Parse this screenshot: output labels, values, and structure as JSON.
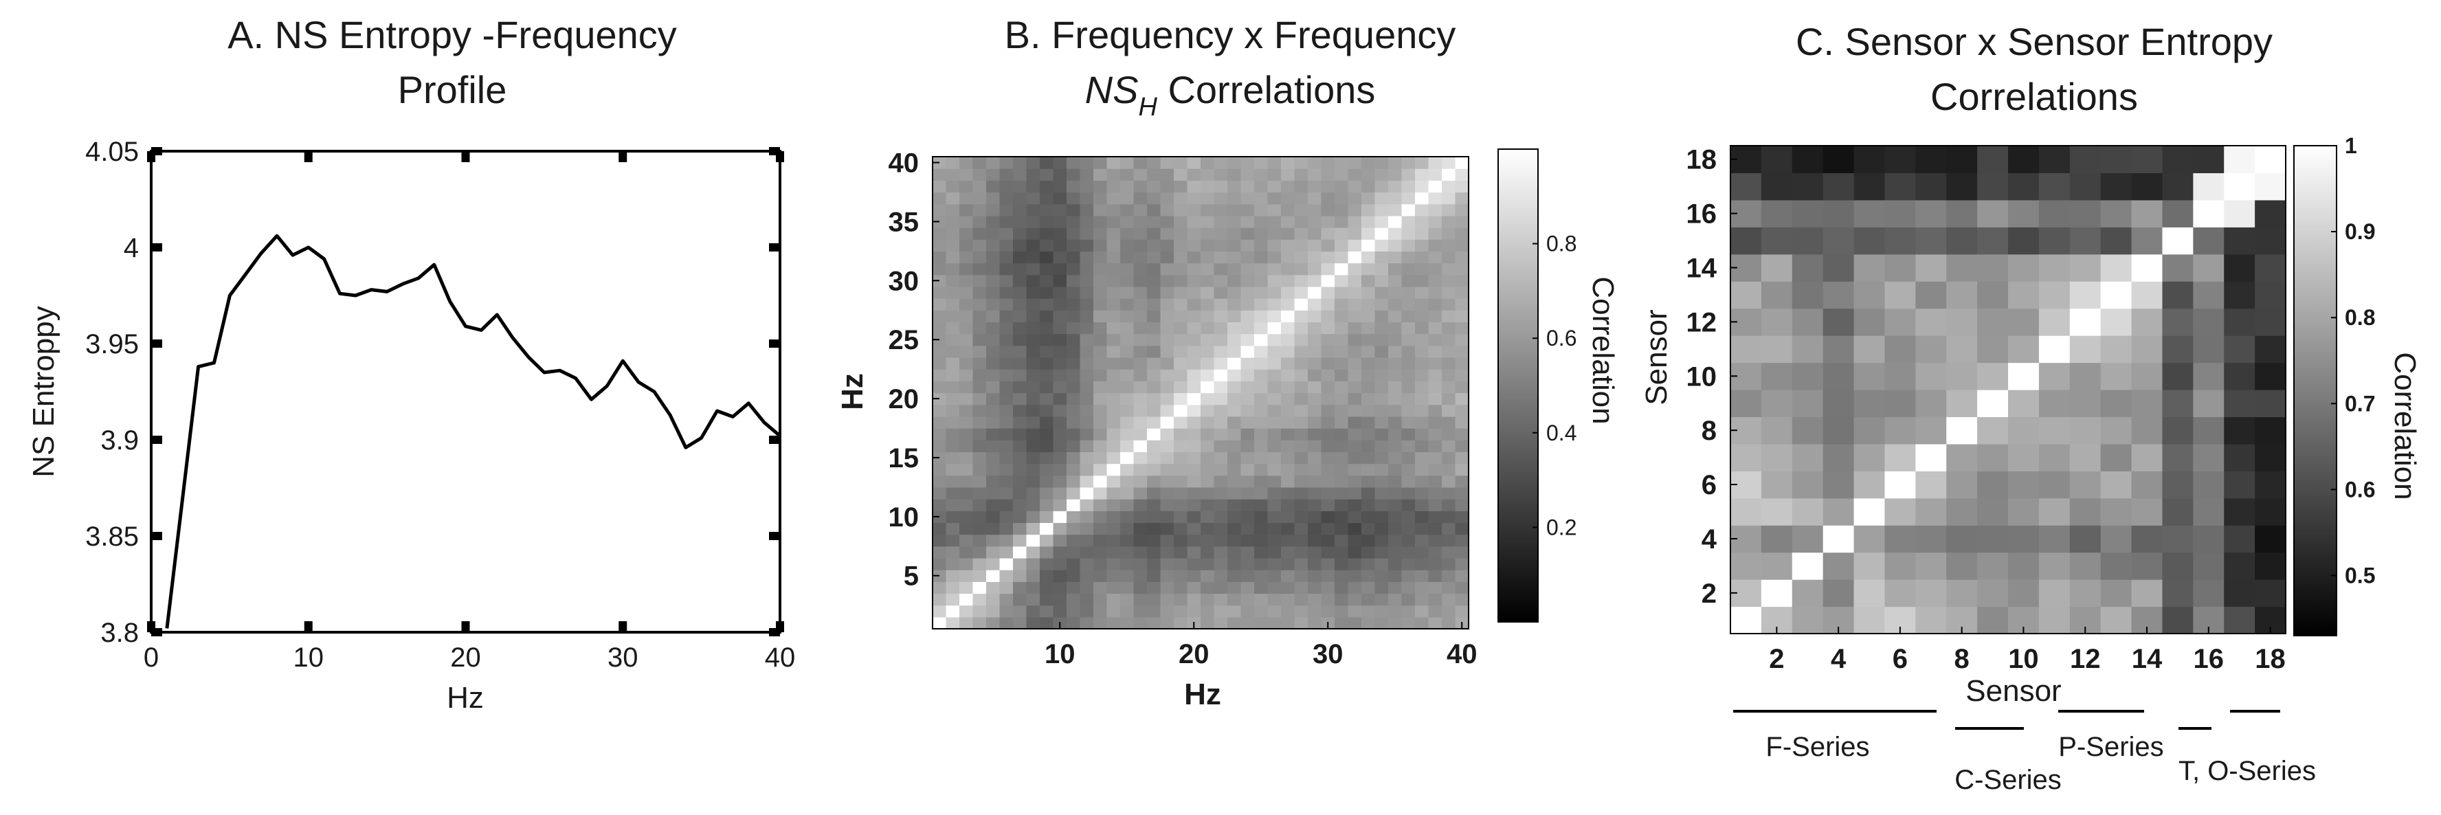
{
  "panels": {
    "a": {
      "title_line1": "A.  NS Entropy -Frequency",
      "title_line2": "Profile"
    },
    "b": {
      "title_line1": "B.  Frequency x Frequency",
      "title_line2_italic": "NS",
      "title_line2_sub": "H",
      "title_line2_rest": " Correlations"
    },
    "c": {
      "title_line1": "C.  Sensor x Sensor Entropy",
      "title_line2": "Correlations"
    }
  },
  "chart_data": [
    {
      "type": "line",
      "title": "A.  NS Entropy -Frequency Profile",
      "xlabel": "Hz",
      "ylabel": "NS Entroppy",
      "xlim": [
        0,
        40
      ],
      "ylim": [
        3.8,
        4.05
      ],
      "xticks": [
        "0",
        "10",
        "20",
        "30",
        "40"
      ],
      "yticks": [
        "3.8",
        "3.85",
        "3.9",
        "3.95",
        "4",
        "4.05"
      ],
      "grid": false,
      "x": [
        1,
        2,
        3,
        4,
        5,
        6,
        7,
        8,
        9,
        10,
        11,
        12,
        13,
        14,
        15,
        16,
        17,
        18,
        19,
        20,
        21,
        22,
        23,
        24,
        25,
        26,
        27,
        28,
        29,
        30,
        31,
        32,
        33,
        34,
        35,
        36,
        37,
        38,
        39,
        40
      ],
      "values": [
        3.802,
        3.87,
        3.938,
        3.94,
        3.975,
        3.986,
        3.997,
        4.006,
        3.996,
        4.0,
        3.994,
        3.976,
        3.975,
        3.978,
        3.977,
        3.981,
        3.984,
        3.991,
        3.972,
        3.959,
        3.957,
        3.965,
        3.953,
        3.943,
        3.935,
        3.936,
        3.932,
        3.921,
        3.928,
        3.941,
        3.93,
        3.925,
        3.913,
        3.896,
        3.901,
        3.915,
        3.912,
        3.919,
        3.909,
        3.902
      ]
    },
    {
      "type": "heatmap",
      "title": "B.  Frequency x Frequency NS_H Correlations",
      "xlabel": "Hz",
      "ylabel": "Hz",
      "xticks": [
        "10",
        "20",
        "30",
        "40"
      ],
      "yticks": [
        "5",
        "10",
        "15",
        "20",
        "25",
        "30",
        "35",
        "40"
      ],
      "size": 40,
      "colorbar_label": "Correlation",
      "colorbar_ticks": [
        "0.2",
        "0.4",
        "0.6",
        "0.8"
      ],
      "colorbar_range": [
        0.0,
        1.0
      ],
      "colormap": "gray",
      "hz_mean_level": [
        0.6,
        0.62,
        0.55,
        0.45,
        0.38,
        0.3,
        0.2,
        0.14,
        0.1,
        0.12,
        0.22,
        0.35,
        0.5,
        0.58,
        0.55,
        0.5,
        0.45,
        0.55,
        0.62,
        0.66,
        0.66,
        0.64,
        0.62,
        0.6,
        0.6,
        0.62,
        0.62,
        0.6,
        0.56,
        0.54,
        0.52,
        0.5,
        0.52,
        0.54,
        0.56,
        0.58,
        0.62,
        0.64,
        0.66,
        0.68
      ]
    },
    {
      "type": "heatmap",
      "title": "C.  Sensor x Sensor Entropy Correlations",
      "xlabel": "Sensor",
      "ylabel": "Sensor",
      "xticks": [
        "2",
        "4",
        "6",
        "8",
        "10",
        "12",
        "14",
        "16",
        "18"
      ],
      "yticks": [
        "2",
        "4",
        "6",
        "8",
        "10",
        "12",
        "14",
        "16",
        "18"
      ],
      "colorbar_label": "Correlation",
      "colorbar_ticks": [
        "0.5",
        "0.6",
        "0.7",
        "0.8",
        "0.9",
        "1"
      ],
      "colorbar_range": [
        0.43,
        1.0
      ],
      "colormap": "gray",
      "groups": [
        "F-Series",
        "C-Series",
        "P-Series",
        "T, O-Series"
      ],
      "sensor_mean_level": [
        0.8,
        0.78,
        0.72,
        0.66,
        0.78,
        0.78,
        0.77,
        0.79,
        0.77,
        0.76,
        0.77,
        0.79,
        0.8,
        0.79,
        0.6,
        0.72,
        0.5,
        0.48
      ]
    }
  ]
}
